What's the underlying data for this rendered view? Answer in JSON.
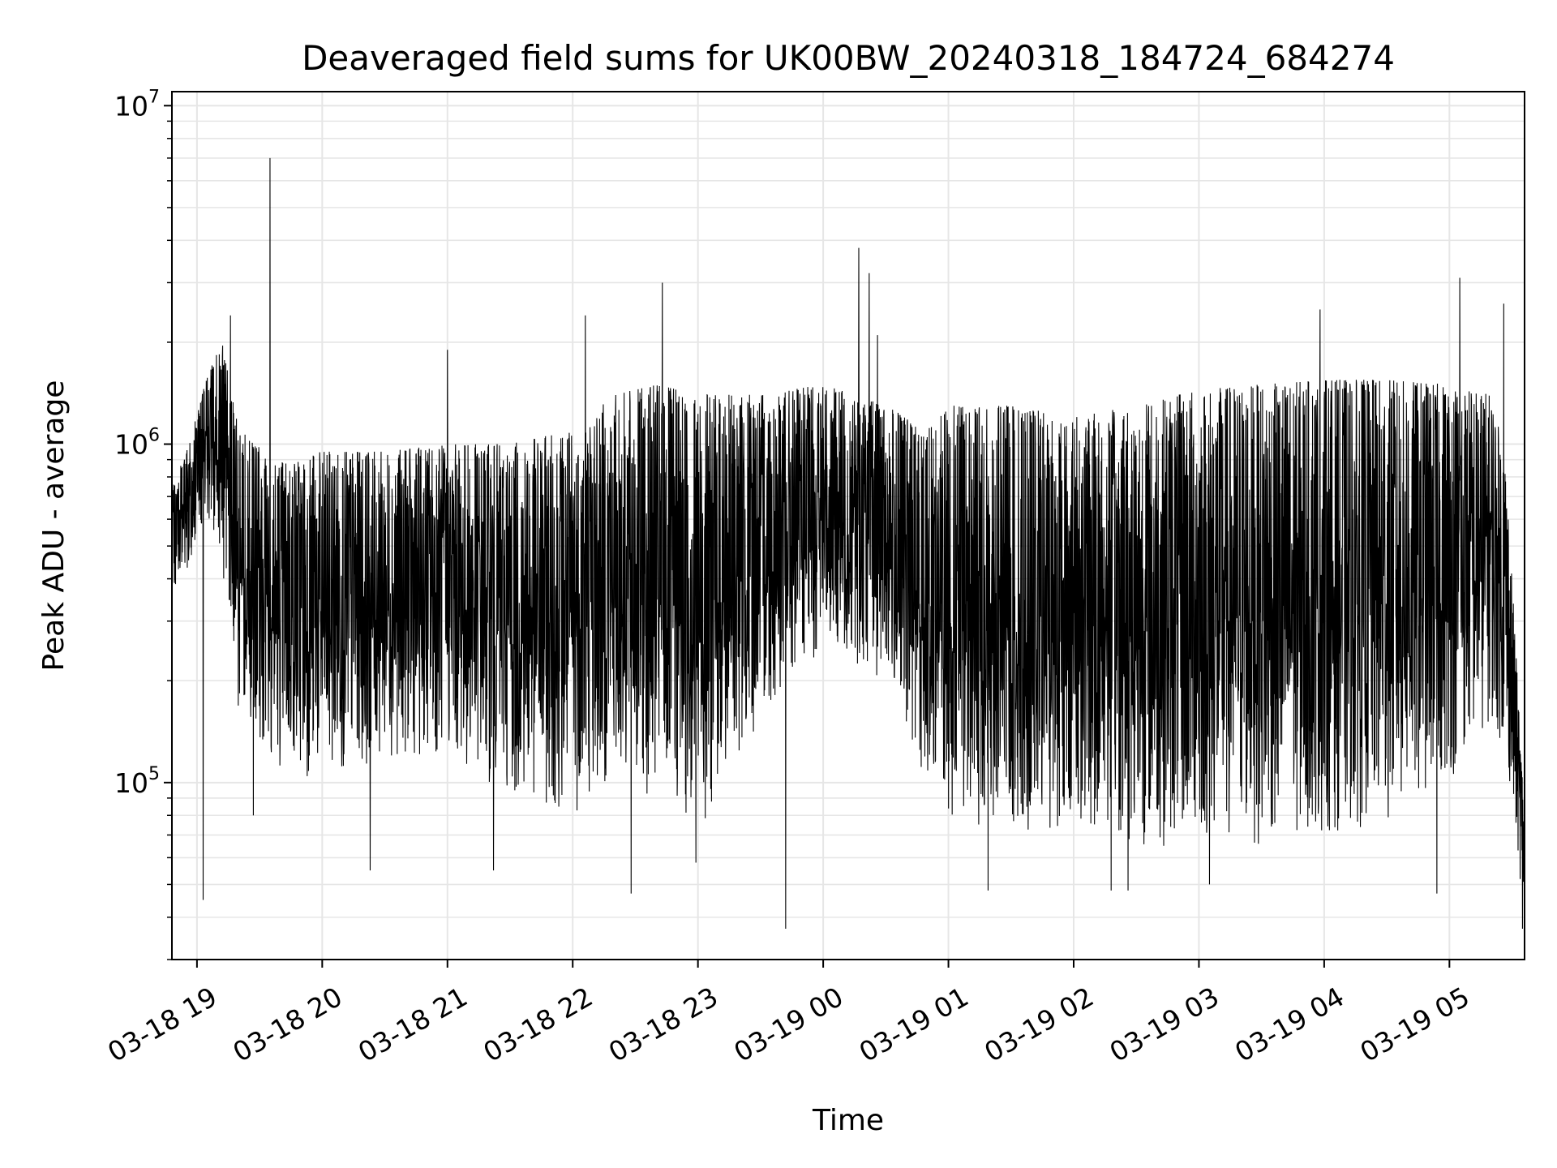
{
  "chart_data": {
    "type": "line",
    "title": "Deaveraged field sums for UK00BW_20240318_184724_684274",
    "xlabel": "Time",
    "ylabel": "Peak ADU - average",
    "yscale": "log",
    "grid": true,
    "line_color": "#000000",
    "grid_color": "#e6e6e6",
    "xlim": [
      "2024-03-18 18:48",
      "2024-03-19 05:36"
    ],
    "ylim": [
      30000,
      11000000
    ],
    "x_ticks": [
      {
        "value": "2024-03-18 19:00",
        "label": "03-18 19"
      },
      {
        "value": "2024-03-18 20:00",
        "label": "03-18 20"
      },
      {
        "value": "2024-03-18 21:00",
        "label": "03-18 21"
      },
      {
        "value": "2024-03-18 22:00",
        "label": "03-18 22"
      },
      {
        "value": "2024-03-18 23:00",
        "label": "03-18 23"
      },
      {
        "value": "2024-03-19 00:00",
        "label": "03-19 00"
      },
      {
        "value": "2024-03-19 01:00",
        "label": "03-19 01"
      },
      {
        "value": "2024-03-19 02:00",
        "label": "03-19 02"
      },
      {
        "value": "2024-03-19 03:00",
        "label": "03-19 03"
      },
      {
        "value": "2024-03-19 04:00",
        "label": "03-19 04"
      },
      {
        "value": "2024-03-19 05:00",
        "label": "03-19 05"
      }
    ],
    "y_ticks": [
      {
        "value": 100000,
        "base": "10",
        "exp": "5"
      },
      {
        "value": 1000000,
        "base": "10",
        "exp": "6"
      },
      {
        "value": 10000000,
        "base": "10",
        "exp": "7"
      }
    ],
    "profile": [
      {
        "x": "2024-03-18 18:48",
        "low": 350000,
        "high": 750000
      },
      {
        "x": "2024-03-18 18:55",
        "low": 420000,
        "high": 950000
      },
      {
        "x": "2024-03-18 19:05",
        "low": 600000,
        "high": 1600000
      },
      {
        "x": "2024-03-18 19:12",
        "low": 400000,
        "high": 2000000
      },
      {
        "x": "2024-03-18 19:20",
        "low": 150000,
        "high": 1100000
      },
      {
        "x": "2024-03-18 19:40",
        "low": 110000,
        "high": 900000
      },
      {
        "x": "2024-03-18 20:00",
        "low": 100000,
        "high": 950000
      },
      {
        "x": "2024-03-18 20:30",
        "low": 120000,
        "high": 950000
      },
      {
        "x": "2024-03-18 21:00",
        "low": 120000,
        "high": 1000000
      },
      {
        "x": "2024-03-18 21:30",
        "low": 90000,
        "high": 1000000
      },
      {
        "x": "2024-03-18 22:00",
        "low": 80000,
        "high": 1100000
      },
      {
        "x": "2024-03-18 22:20",
        "low": 100000,
        "high": 1400000
      },
      {
        "x": "2024-03-18 22:40",
        "low": 90000,
        "high": 1500000
      },
      {
        "x": "2024-03-18 23:00",
        "low": 70000,
        "high": 1400000
      },
      {
        "x": "2024-03-18 23:30",
        "low": 150000,
        "high": 1400000
      },
      {
        "x": "2024-03-19 00:00",
        "low": 250000,
        "high": 1500000
      },
      {
        "x": "2024-03-19 00:30",
        "low": 200000,
        "high": 1300000
      },
      {
        "x": "2024-03-19 00:50",
        "low": 100000,
        "high": 1100000
      },
      {
        "x": "2024-03-19 01:00",
        "low": 80000,
        "high": 1300000
      },
      {
        "x": "2024-03-19 01:30",
        "low": 70000,
        "high": 1300000
      },
      {
        "x": "2024-03-19 02:00",
        "low": 70000,
        "high": 1200000
      },
      {
        "x": "2024-03-19 02:30",
        "low": 65000,
        "high": 1300000
      },
      {
        "x": "2024-03-19 03:00",
        "low": 65000,
        "high": 1450000
      },
      {
        "x": "2024-03-19 03:30",
        "low": 65000,
        "high": 1500000
      },
      {
        "x": "2024-03-19 04:00",
        "low": 70000,
        "high": 1550000
      },
      {
        "x": "2024-03-19 04:30",
        "low": 75000,
        "high": 1550000
      },
      {
        "x": "2024-03-19 05:00",
        "low": 100000,
        "high": 1500000
      },
      {
        "x": "2024-03-19 05:20",
        "low": 150000,
        "high": 1400000
      },
      {
        "x": "2024-03-19 05:27",
        "low": 120000,
        "high": 900000
      },
      {
        "x": "2024-03-19 05:36",
        "low": 40000,
        "high": 80000
      }
    ],
    "spikes": [
      {
        "x": "2024-03-18 19:03",
        "y": 45000
      },
      {
        "x": "2024-03-18 19:16",
        "y": 2400000
      },
      {
        "x": "2024-03-18 19:27",
        "y": 80000
      },
      {
        "x": "2024-03-18 19:35",
        "y": 8700000
      },
      {
        "x": "2024-03-18 19:35",
        "y": 7000000
      },
      {
        "x": "2024-03-18 20:23",
        "y": 55000
      },
      {
        "x": "2024-03-18 21:00",
        "y": 1900000
      },
      {
        "x": "2024-03-18 21:22",
        "y": 55000
      },
      {
        "x": "2024-03-18 22:06",
        "y": 2400000
      },
      {
        "x": "2024-03-18 22:28",
        "y": 47000
      },
      {
        "x": "2024-03-18 22:43",
        "y": 3000000
      },
      {
        "x": "2024-03-18 22:59",
        "y": 58000
      },
      {
        "x": "2024-03-18 23:42",
        "y": 37000
      },
      {
        "x": "2024-03-19 00:17",
        "y": 3800000
      },
      {
        "x": "2024-03-19 00:22",
        "y": 3200000
      },
      {
        "x": "2024-03-19 00:26",
        "y": 2100000
      },
      {
        "x": "2024-03-19 01:19",
        "y": 48000
      },
      {
        "x": "2024-03-19 02:18",
        "y": 48000
      },
      {
        "x": "2024-03-19 02:26",
        "y": 48000
      },
      {
        "x": "2024-03-19 03:05",
        "y": 50000
      },
      {
        "x": "2024-03-19 03:58",
        "y": 2500000
      },
      {
        "x": "2024-03-19 04:54",
        "y": 47000
      },
      {
        "x": "2024-03-19 05:05",
        "y": 3100000
      },
      {
        "x": "2024-03-19 05:26",
        "y": 2600000
      },
      {
        "x": "2024-03-19 05:35",
        "y": 37000
      }
    ]
  }
}
